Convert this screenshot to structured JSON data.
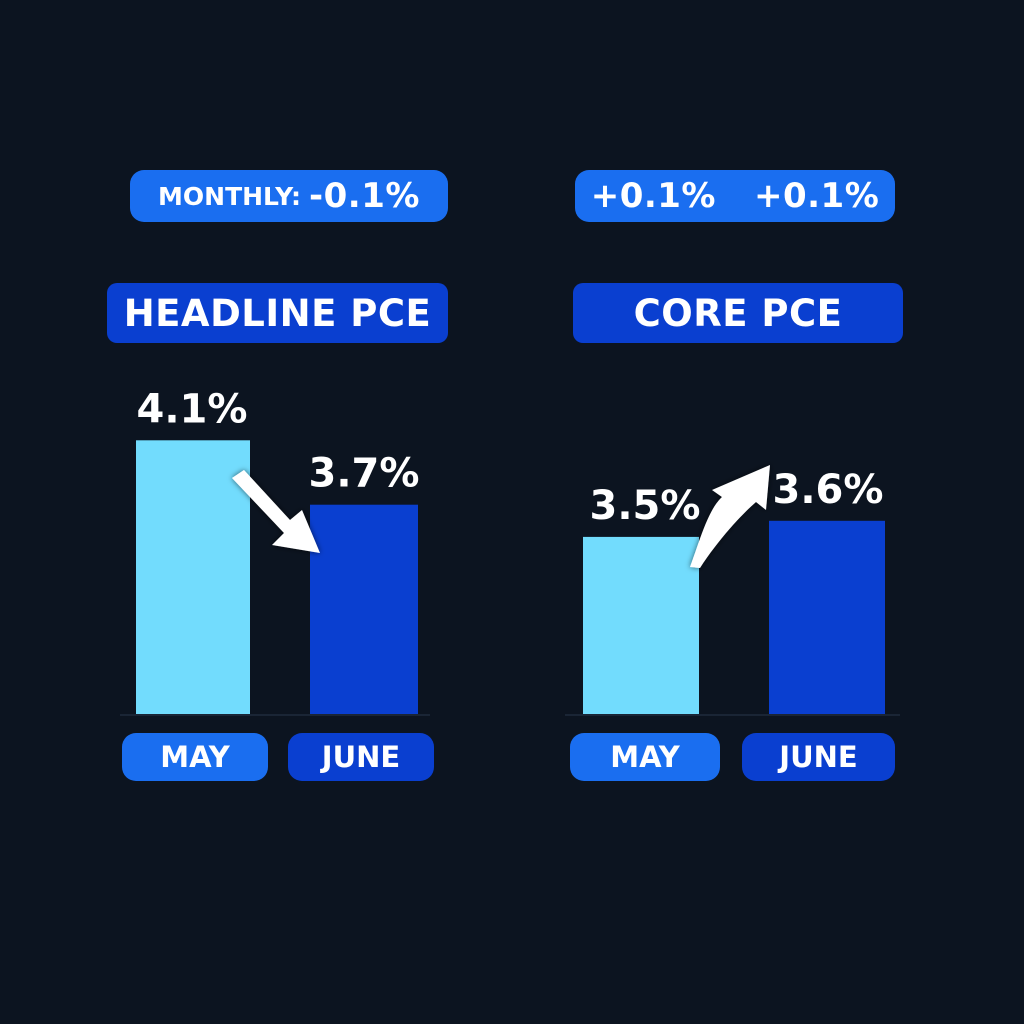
{
  "colors": {
    "background": "#0c1420",
    "may_bar": "#72dcfd",
    "june_bar": "#0a3fd0",
    "accent": "#1a6ef0"
  },
  "monthly_label": "MONTHLY:",
  "monthly_headline": "-0.1%",
  "monthly_core_a": "+0.1%",
  "monthly_core_b": "+0.1%",
  "chart_data": [
    {
      "type": "bar",
      "title": "HEADLINE PCE",
      "categories": [
        "MAY",
        "JUNE"
      ],
      "values": [
        4.1,
        3.7
      ],
      "value_labels": [
        "4.1%",
        "3.7%"
      ],
      "arrow": "down"
    },
    {
      "type": "bar",
      "title": "CORE PCE",
      "categories": [
        "MAY",
        "JUNE"
      ],
      "values": [
        3.5,
        3.6
      ],
      "value_labels": [
        "3.5%",
        "3.6%"
      ],
      "arrow": "up"
    }
  ]
}
